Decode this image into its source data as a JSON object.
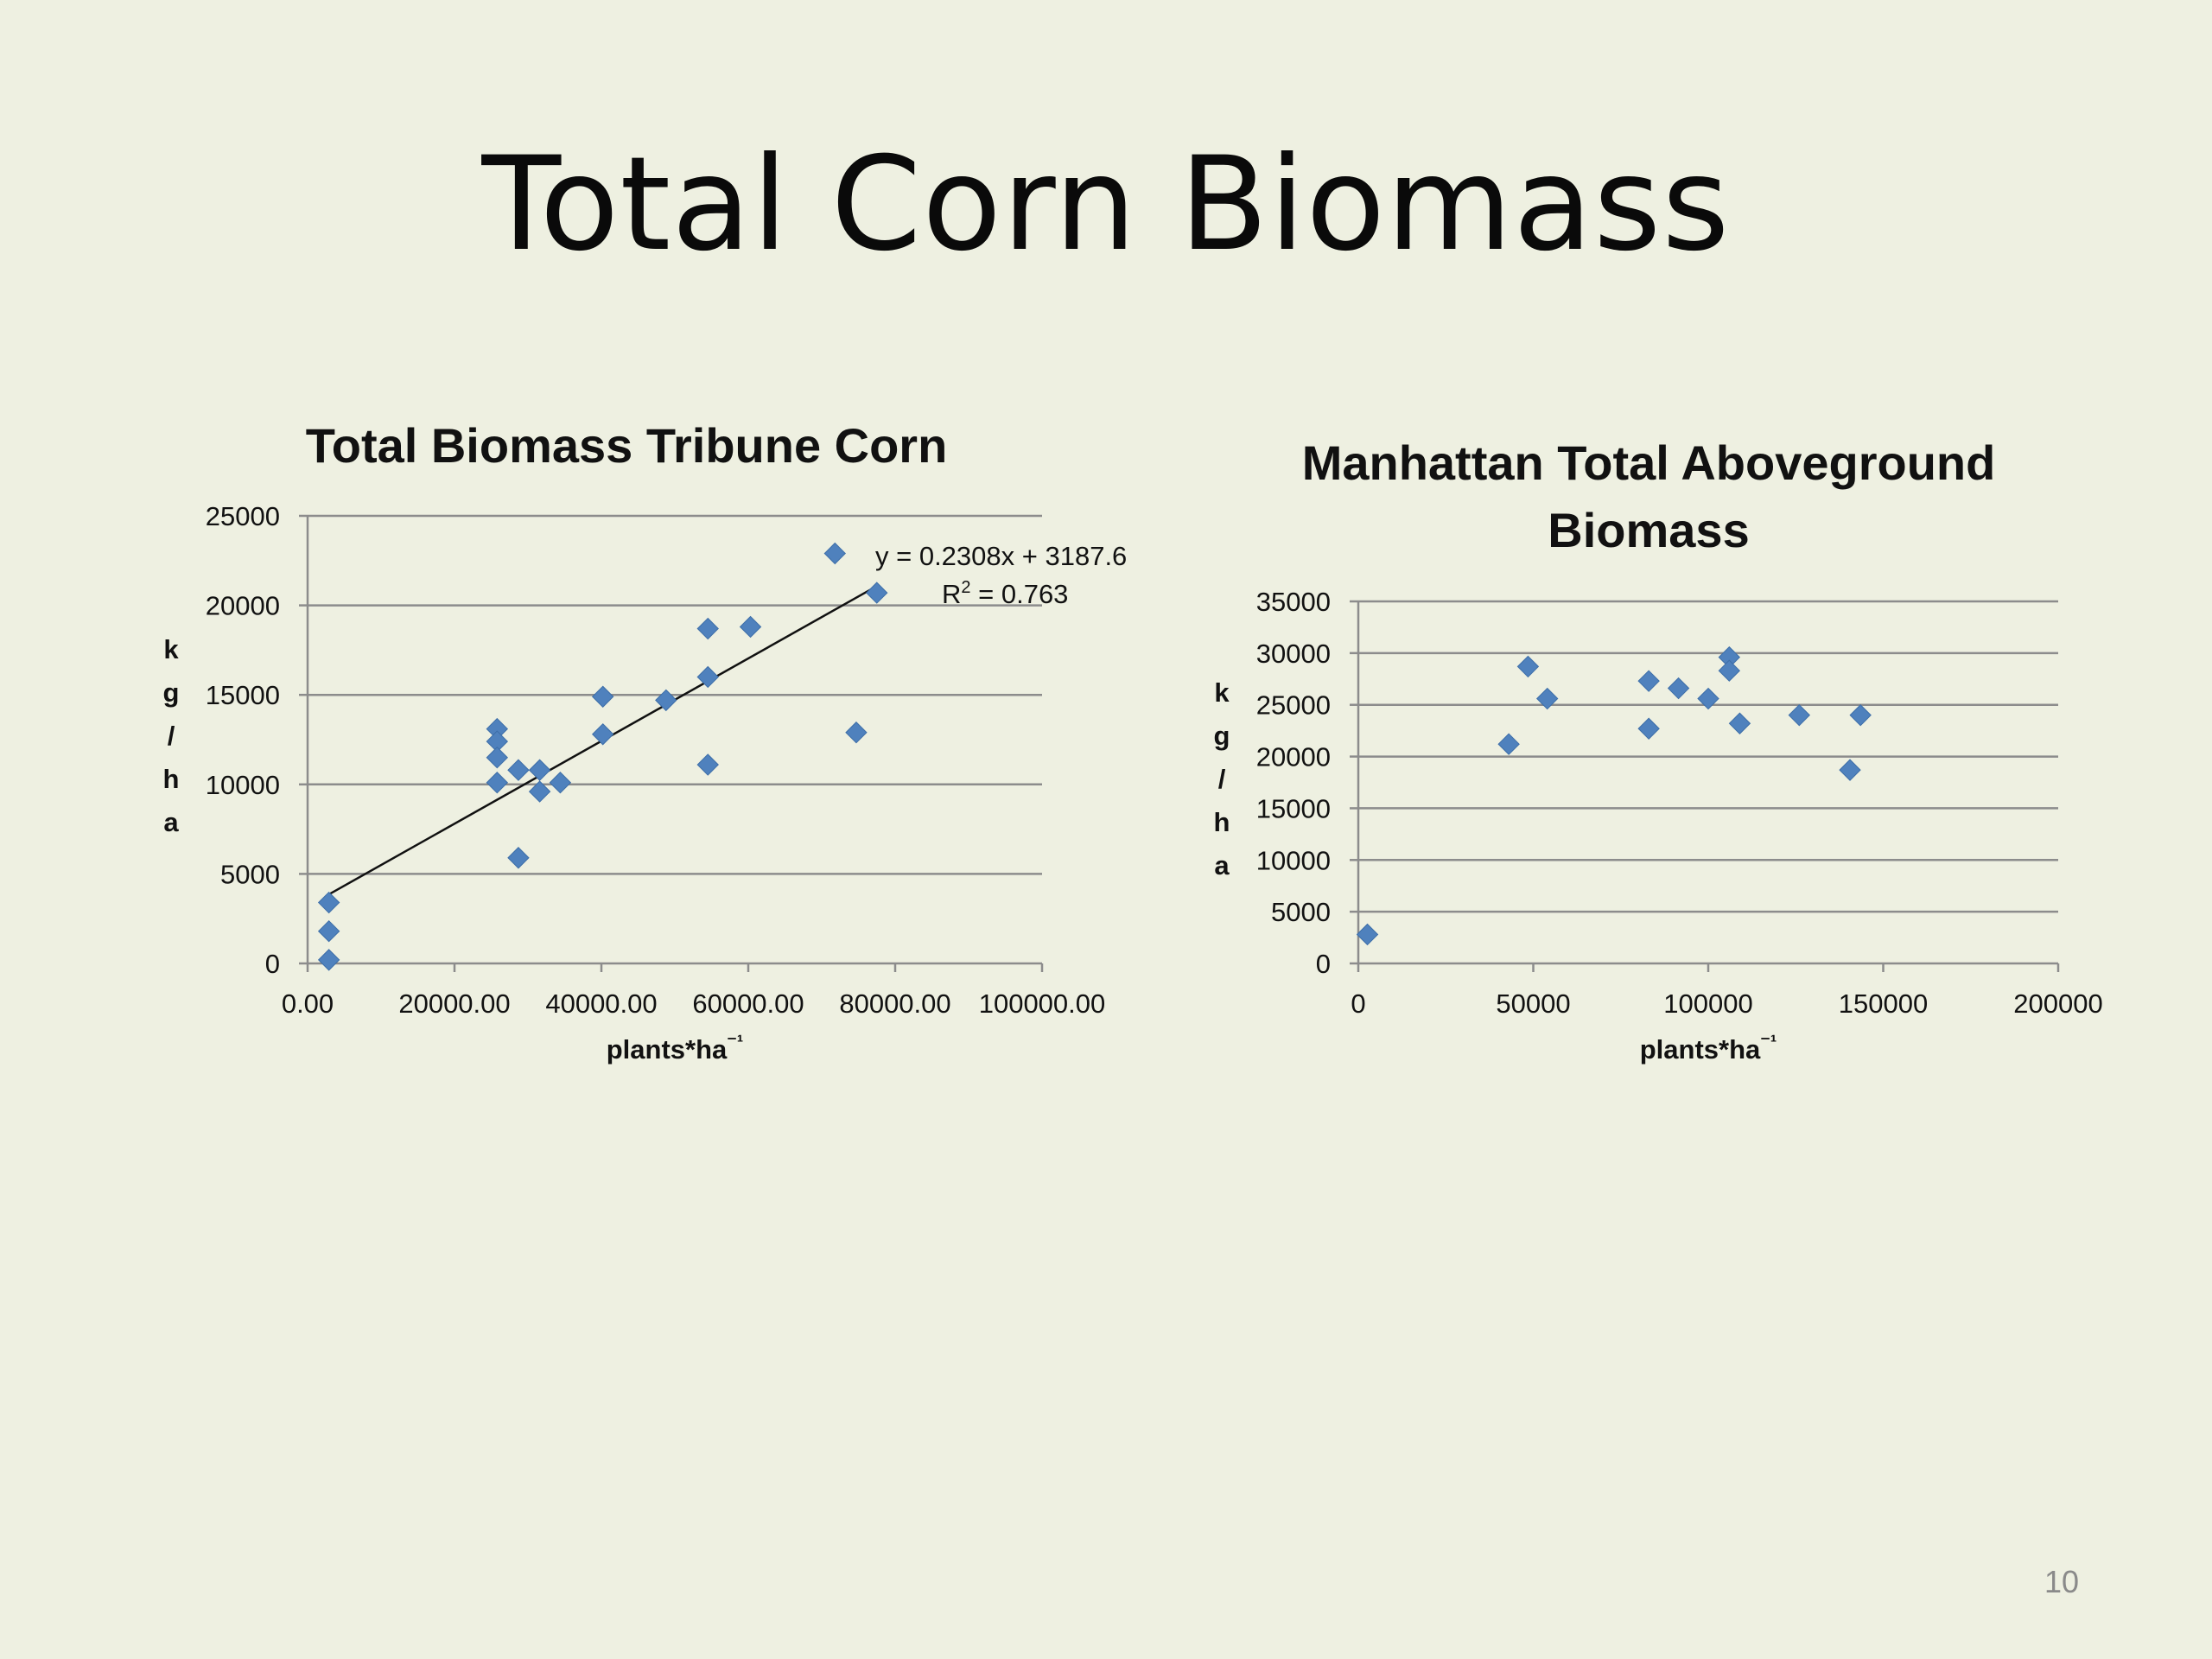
{
  "slide": {
    "title": "Total Corn Biomass",
    "page_number": "10"
  },
  "colors": {
    "background": "#eef0e1",
    "marker": "#4f81bd",
    "gridline": "#8c8c8c",
    "trendline": "#111111"
  },
  "chart_data": [
    {
      "type": "scatter",
      "title": "Total Biomass Tribune Corn",
      "xlabel": "plants*ha⁻¹",
      "ylabel": "k g / h a",
      "xlim": [
        0,
        100000
      ],
      "ylim": [
        0,
        25000
      ],
      "x_ticks": [
        "0.00",
        "20000.00",
        "40000.00",
        "60000.00",
        "80000.00",
        "100000.00"
      ],
      "y_ticks": [
        "0",
        "5000",
        "10000",
        "15000",
        "20000",
        "25000"
      ],
      "grid": "horizontal",
      "marker": "diamond",
      "trendline": {
        "equation": "y = 0.2308x + 3187.6",
        "r2": "R² = 0.763",
        "slope": 0.2308,
        "intercept": 3187.6,
        "x_start": 2900,
        "x_end": 77500
      },
      "points": [
        {
          "x": 2900,
          "y": 3400
        },
        {
          "x": 2900,
          "y": 1800
        },
        {
          "x": 2900,
          "y": 200
        },
        {
          "x": 25800,
          "y": 13100
        },
        {
          "x": 25800,
          "y": 12400
        },
        {
          "x": 25800,
          "y": 11500
        },
        {
          "x": 25800,
          "y": 10100
        },
        {
          "x": 28700,
          "y": 10800
        },
        {
          "x": 28700,
          "y": 5900
        },
        {
          "x": 31600,
          "y": 10800
        },
        {
          "x": 31600,
          "y": 9600
        },
        {
          "x": 34400,
          "y": 10100
        },
        {
          "x": 40200,
          "y": 14900
        },
        {
          "x": 40200,
          "y": 12800
        },
        {
          "x": 48800,
          "y": 14700
        },
        {
          "x": 54500,
          "y": 18700
        },
        {
          "x": 54500,
          "y": 16000
        },
        {
          "x": 54500,
          "y": 11100
        },
        {
          "x": 60300,
          "y": 18800
        },
        {
          "x": 71800,
          "y": 22900
        },
        {
          "x": 74700,
          "y": 12900
        },
        {
          "x": 77500,
          "y": 20700
        }
      ]
    },
    {
      "type": "scatter",
      "title": "Manhattan Total Aboveground Biomass",
      "title_lines": [
        "Manhattan Total Aboveground",
        "Biomass"
      ],
      "xlabel": "plants*ha⁻¹",
      "ylabel": "k g / h a",
      "xlim": [
        0,
        200000
      ],
      "ylim": [
        0,
        35000
      ],
      "x_ticks": [
        "0",
        "50000",
        "100000",
        "150000",
        "200000"
      ],
      "y_ticks": [
        "0",
        "5000",
        "10000",
        "15000",
        "20000",
        "25000",
        "30000",
        "35000"
      ],
      "grid": "horizontal",
      "marker": "diamond",
      "points": [
        {
          "x": 2600,
          "y": 2800
        },
        {
          "x": 43000,
          "y": 21200
        },
        {
          "x": 48500,
          "y": 28700
        },
        {
          "x": 54000,
          "y": 25600
        },
        {
          "x": 83000,
          "y": 27300
        },
        {
          "x": 83000,
          "y": 22700
        },
        {
          "x": 91500,
          "y": 26600
        },
        {
          "x": 100000,
          "y": 25600
        },
        {
          "x": 106000,
          "y": 29600
        },
        {
          "x": 106000,
          "y": 28300
        },
        {
          "x": 109000,
          "y": 23200
        },
        {
          "x": 126000,
          "y": 24000
        },
        {
          "x": 143500,
          "y": 24000
        },
        {
          "x": 140500,
          "y": 18700
        }
      ]
    }
  ]
}
